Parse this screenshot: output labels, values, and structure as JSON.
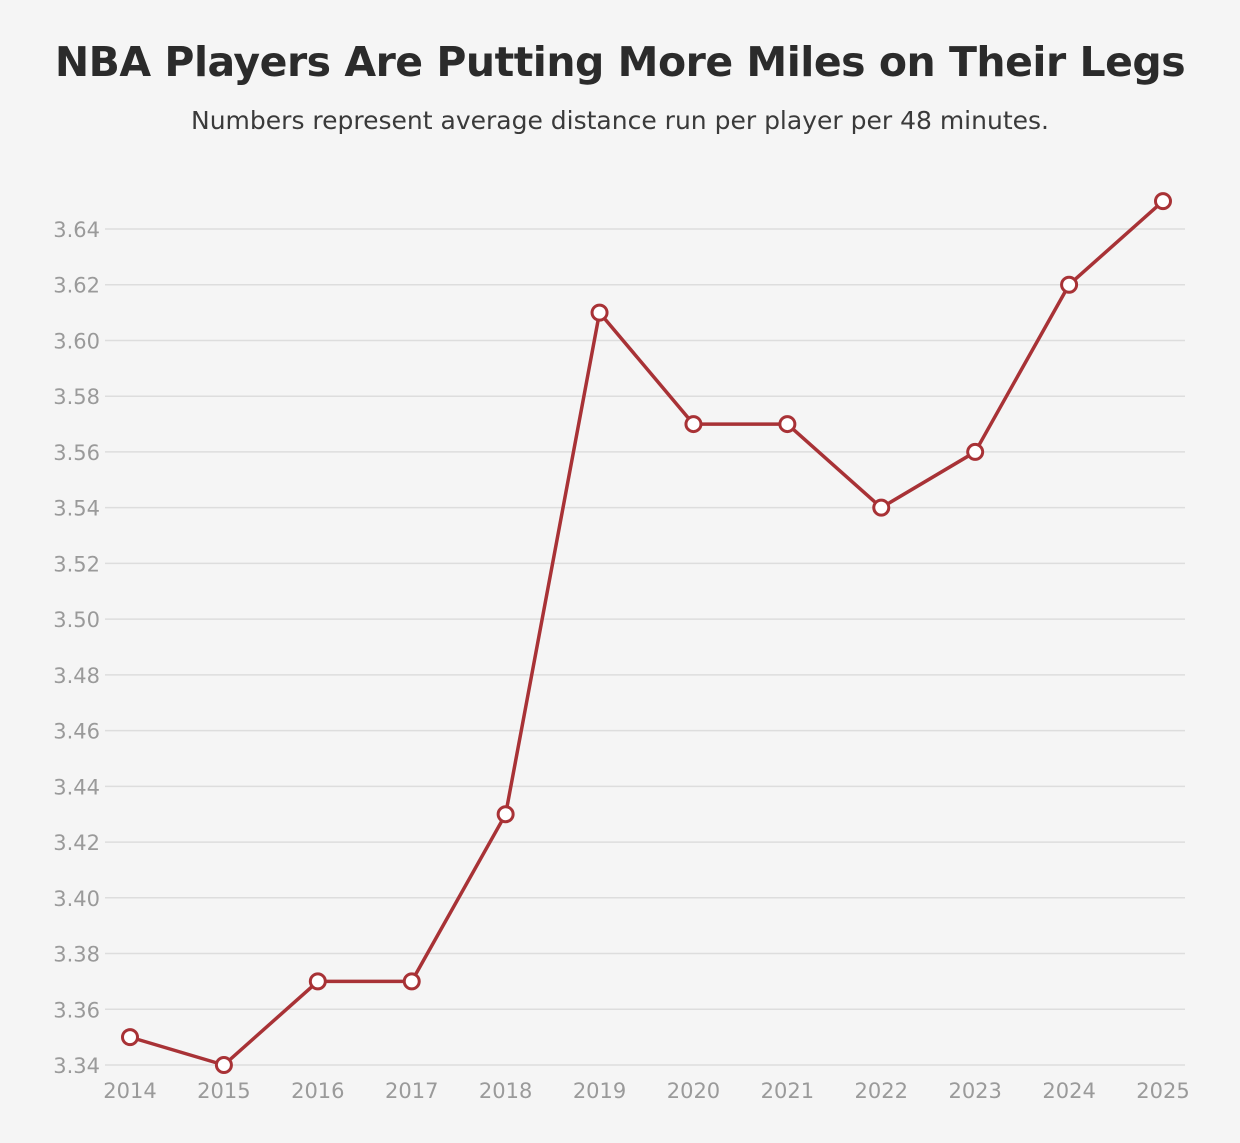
{
  "title": "NBA Players Are Putting More Miles on Their Legs",
  "subtitle": "Numbers represent average distance run per player per 48 minutes.",
  "colors": {
    "line": "#a83236",
    "marker_fill": "#ffffff",
    "grid": "#dddddd",
    "tick_text": "#9a9a9a",
    "background": "#f5f5f5"
  },
  "chart_data": {
    "type": "line",
    "x": [
      "2014",
      "2015",
      "2016",
      "2017",
      "2018",
      "2019",
      "2020",
      "2021",
      "2022",
      "2023",
      "2024",
      "2025"
    ],
    "series": [
      {
        "values": [
          3.35,
          3.34,
          3.37,
          3.37,
          3.43,
          3.61,
          3.57,
          3.57,
          3.54,
          3.56,
          3.62,
          3.65
        ]
      }
    ],
    "yticks": [
      "3.34",
      "3.36",
      "3.38",
      "3.40",
      "3.42",
      "3.44",
      "3.46",
      "3.48",
      "3.50",
      "3.52",
      "3.54",
      "3.56",
      "3.58",
      "3.60",
      "3.62",
      "3.64"
    ],
    "ylim": [
      3.34,
      3.64
    ],
    "xlabel": "",
    "ylabel": "",
    "grid": true,
    "legend": "none"
  }
}
